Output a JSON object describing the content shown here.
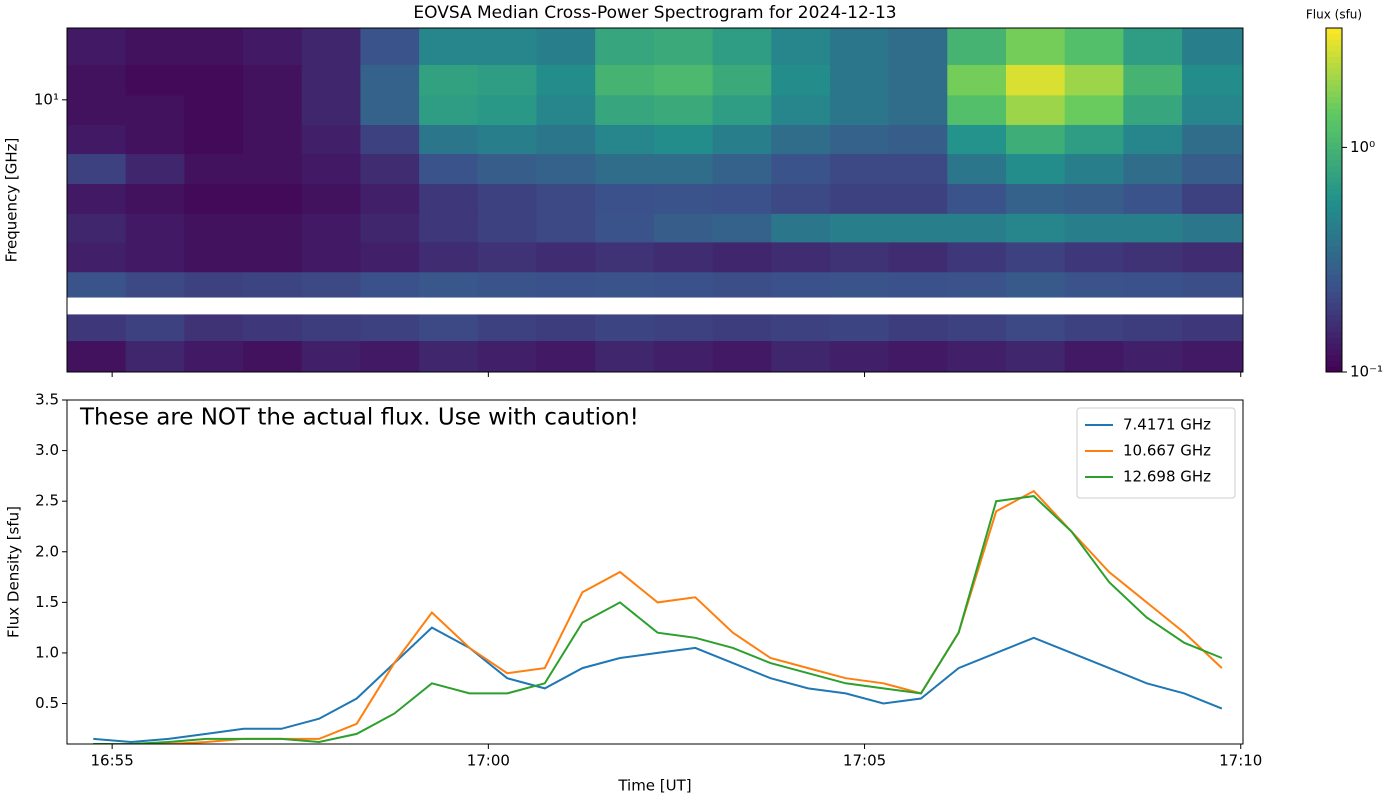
{
  "chart_data": [
    {
      "type": "heatmap",
      "title": "EOVSA Median Cross-Power Spectrogram for 2024-12-13",
      "ylabel": "Frequency [GHz]",
      "log_y": true,
      "xlim": [
        54.4,
        70.03
      ],
      "xticks": [
        55,
        60,
        65,
        70
      ],
      "ylim": [
        1.9,
        15.5
      ],
      "yticks": [
        {
          "value": 10,
          "label": "10¹"
        }
      ],
      "x_edges": [
        54.4,
        55.18,
        55.96,
        56.74,
        57.52,
        58.3,
        59.08,
        59.86,
        60.64,
        61.42,
        62.2,
        62.98,
        63.76,
        64.54,
        65.32,
        66.1,
        66.88,
        67.66,
        68.44,
        69.22,
        70.03
      ],
      "y_edges": [
        1.9,
        2.3,
        2.7,
        3.0,
        3.5,
        4.2,
        5.0,
        6.0,
        7.2,
        8.6,
        10.3,
        12.4,
        15.5
      ],
      "z": [
        [
          0.12,
          0.15,
          0.13,
          0.12,
          0.14,
          0.13,
          0.15,
          0.14,
          0.13,
          0.15,
          0.14,
          0.13,
          0.15,
          0.14,
          0.13,
          0.14,
          0.15,
          0.13,
          0.14,
          0.13
        ],
        [
          0.18,
          0.2,
          0.17,
          0.18,
          0.19,
          0.2,
          0.22,
          0.2,
          0.19,
          0.21,
          0.2,
          0.19,
          0.2,
          0.21,
          0.19,
          0.2,
          0.22,
          0.2,
          0.19,
          0.18
        ],
        [
          null,
          null,
          null,
          null,
          null,
          null,
          null,
          null,
          null,
          null,
          null,
          null,
          null,
          null,
          null,
          null,
          null,
          null,
          null,
          null
        ],
        [
          0.25,
          0.22,
          0.2,
          0.21,
          0.22,
          0.24,
          0.26,
          0.25,
          0.24,
          0.25,
          0.24,
          0.23,
          0.24,
          0.25,
          0.24,
          0.25,
          0.27,
          0.25,
          0.24,
          0.23
        ],
        [
          0.14,
          0.13,
          0.12,
          0.12,
          0.13,
          0.14,
          0.16,
          0.17,
          0.16,
          0.17,
          0.16,
          0.15,
          0.16,
          0.17,
          0.16,
          0.18,
          0.2,
          0.18,
          0.17,
          0.16
        ],
        [
          0.15,
          0.13,
          0.12,
          0.12,
          0.13,
          0.15,
          0.18,
          0.2,
          0.22,
          0.25,
          0.28,
          0.3,
          0.4,
          0.45,
          0.45,
          0.45,
          0.5,
          0.45,
          0.45,
          0.4
        ],
        [
          0.13,
          0.12,
          0.11,
          0.11,
          0.12,
          0.14,
          0.18,
          0.2,
          0.22,
          0.24,
          0.25,
          0.24,
          0.22,
          0.2,
          0.2,
          0.25,
          0.3,
          0.28,
          0.25,
          0.2
        ],
        [
          0.2,
          0.15,
          0.12,
          0.12,
          0.13,
          0.16,
          0.25,
          0.28,
          0.3,
          0.35,
          0.35,
          0.3,
          0.25,
          0.22,
          0.22,
          0.4,
          0.55,
          0.45,
          0.35,
          0.28
        ],
        [
          0.13,
          0.12,
          0.11,
          0.12,
          0.14,
          0.2,
          0.4,
          0.45,
          0.4,
          0.5,
          0.55,
          0.45,
          0.35,
          0.3,
          0.28,
          0.6,
          0.9,
          0.7,
          0.5,
          0.35
        ],
        [
          0.12,
          0.12,
          0.11,
          0.12,
          0.15,
          0.3,
          0.7,
          0.65,
          0.5,
          0.8,
          0.85,
          0.7,
          0.5,
          0.4,
          0.35,
          1.2,
          2.0,
          1.5,
          0.8,
          0.5
        ],
        [
          0.12,
          0.11,
          0.11,
          0.12,
          0.15,
          0.3,
          0.75,
          0.7,
          0.55,
          1.0,
          1.1,
          0.85,
          0.55,
          0.4,
          0.35,
          1.6,
          2.8,
          2.0,
          1.0,
          0.55
        ],
        [
          0.13,
          0.12,
          0.12,
          0.13,
          0.15,
          0.25,
          0.5,
          0.5,
          0.45,
          0.8,
          0.85,
          0.7,
          0.5,
          0.4,
          0.35,
          1.0,
          1.6,
          1.2,
          0.7,
          0.45
        ]
      ],
      "colorbar": {
        "label": "Flux (sfu)",
        "log": true,
        "colormap": "viridis",
        "lim": [
          0.1,
          3.4
        ],
        "ticks": [
          {
            "value": 0.1,
            "label": "10⁻¹"
          },
          {
            "value": 1,
            "label": "10⁰"
          }
        ]
      }
    },
    {
      "type": "line",
      "xlabel": "Time [UT]",
      "ylabel": "Flux Density [sfu]",
      "annotation": "These are NOT the actual flux. Use with caution!",
      "legend": "upper right",
      "xlim": [
        54.4,
        70.03
      ],
      "xticks": [
        {
          "value": 55,
          "label": "16:55"
        },
        {
          "value": 60,
          "label": "17:00"
        },
        {
          "value": 65,
          "label": "17:05"
        },
        {
          "value": 70,
          "label": "17:10"
        }
      ],
      "ylim": [
        0.1,
        3.5
      ],
      "yticks": [
        0.5,
        {
          "value": 1,
          "label": "1.0"
        },
        1.5,
        {
          "value": 2,
          "label": "2.0"
        },
        2.5,
        {
          "value": 3,
          "label": "3.0"
        },
        3.5
      ],
      "x": [
        54.75,
        55.25,
        55.75,
        56.25,
        56.75,
        57.25,
        57.75,
        58.25,
        58.75,
        59.25,
        59.75,
        60.25,
        60.75,
        61.25,
        61.75,
        62.25,
        62.75,
        63.25,
        63.75,
        64.25,
        64.75,
        65.25,
        65.75,
        66.25,
        66.75,
        67.25,
        67.75,
        68.25,
        68.75,
        69.25,
        69.75
      ],
      "series": [
        {
          "name": "7.4171 GHz",
          "color": "#1f77b4",
          "values": [
            0.15,
            0.12,
            0.15,
            0.2,
            0.25,
            0.25,
            0.35,
            0.55,
            0.9,
            1.25,
            1.05,
            0.75,
            0.65,
            0.85,
            0.95,
            1.0,
            1.05,
            0.9,
            0.75,
            0.65,
            0.6,
            0.5,
            0.55,
            0.85,
            1.0,
            1.15,
            1.0,
            0.85,
            0.7,
            0.6,
            0.45
          ]
        },
        {
          "name": "10.667 GHz",
          "color": "#ff7f0e",
          "values": [
            0.1,
            0.1,
            0.1,
            0.12,
            0.15,
            0.15,
            0.15,
            0.3,
            0.9,
            1.4,
            1.05,
            0.8,
            0.85,
            1.6,
            1.8,
            1.5,
            1.55,
            1.2,
            0.95,
            0.85,
            0.75,
            0.7,
            0.6,
            1.2,
            2.4,
            2.6,
            2.2,
            1.8,
            1.5,
            1.2,
            0.85
          ]
        },
        {
          "name": "12.698 GHz",
          "color": "#2ca02c",
          "values": [
            0.1,
            0.1,
            0.12,
            0.15,
            0.15,
            0.15,
            0.12,
            0.2,
            0.4,
            0.7,
            0.6,
            0.6,
            0.7,
            1.3,
            1.5,
            1.2,
            1.15,
            1.05,
            0.9,
            0.8,
            0.7,
            0.65,
            0.6,
            1.2,
            2.5,
            2.55,
            2.2,
            1.7,
            1.35,
            1.1,
            0.95
          ]
        }
      ]
    }
  ]
}
